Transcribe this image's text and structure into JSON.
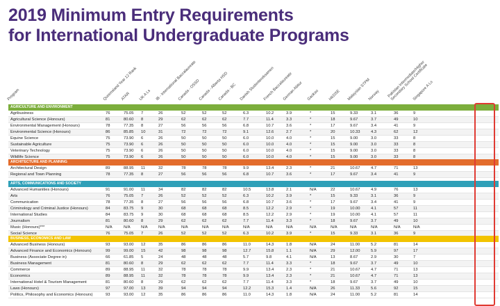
{
  "title_line1": "2019 Minimum Entry Requirements",
  "title_line2": "for International Undergraduate Programs",
  "columns": [
    "Program",
    "Queensland Year 12 Rank",
    "ATAR",
    "UK A Ls",
    "IB - International Baccalaureate",
    "Canada - OSSD",
    "Canada - Alberta HSD",
    "Canada - BC",
    "Danish Studentereksamen",
    "French Baccalaureate",
    "German Abitur",
    "Gaokao",
    "HKDSE",
    "Malaysian STPM",
    "Norway",
    "Pakistan Intermediate/Higher Secondary School Certificate",
    "Singapore A Ls"
  ],
  "colors": {
    "title": "#4a2d7a",
    "agriculture": "#7cae3c",
    "architecture": "#e36c2c",
    "arts": "#2fa0b8",
    "business": "#f2c300",
    "row_alt": "#f3f3f3",
    "highlight": "#e03a32"
  },
  "sections": [
    {
      "name": "AGRICULTURE AND ENVIRONMENT",
      "color": "#7cae3c",
      "rows": [
        [
          "Agribusiness",
          "76",
          "75.05",
          "7",
          "26",
          "52",
          "52",
          "52",
          "6.3",
          "10.2",
          "3.9",
          "*",
          "15",
          "9.33",
          "3.1",
          "36",
          "9"
        ],
        [
          "Agricultural Science (Honours)",
          "81",
          "80.60",
          "8",
          "29",
          "62",
          "62",
          "62",
          "7.7",
          "11.4",
          "3.3",
          "*",
          "18",
          "9.67",
          "3.7",
          "49",
          "10"
        ],
        [
          "Environmental Management (Honours)",
          "78",
          "77.35",
          "8",
          "27",
          "56",
          "56",
          "56",
          "6.8",
          "10.7",
          "3.6",
          "*",
          "17",
          "9.67",
          "3.4",
          "41",
          "9"
        ],
        [
          "Environmental Science (Honours)",
          "86",
          "85.85",
          "10",
          "31",
          "72",
          "72",
          "72",
          "9.1",
          "12.6",
          "2.7",
          "*",
          "20",
          "10.33",
          "4.3",
          "62",
          "12"
        ],
        [
          "Equine Science",
          "75",
          "73.90",
          "6",
          "26",
          "50",
          "50",
          "50",
          "6.0",
          "10.0",
          "4.0",
          "*",
          "15",
          "9.00",
          "3.0",
          "33",
          "8"
        ],
        [
          "Sustainable Agriculture",
          "75",
          "73.90",
          "6",
          "26",
          "50",
          "50",
          "50",
          "6.0",
          "10.0",
          "4.0",
          "*",
          "15",
          "9.00",
          "3.0",
          "33",
          "8"
        ],
        [
          "Veterinary Technology",
          "75",
          "73.90",
          "6",
          "26",
          "50",
          "50",
          "50",
          "6.0",
          "10.0",
          "4.0",
          "*",
          "15",
          "9.00",
          "3.0",
          "33",
          "8"
        ],
        [
          "Wildlife Science",
          "75",
          "73.90",
          "6",
          "26",
          "50",
          "50",
          "50",
          "6.0",
          "10.0",
          "4.0",
          "*",
          "15",
          "9.00",
          "3.0",
          "33",
          "8"
        ]
      ]
    },
    {
      "name": "ARCHITECTURE AND PLANNING",
      "color": "#e36c2c",
      "rows": [
        [
          "Architectural Design",
          "89",
          "88.95",
          "11",
          "32",
          "78",
          "78",
          "78",
          "9.9",
          "13.4",
          "2.3",
          "*",
          "21",
          "10.67",
          "4.7",
          "71",
          "13"
        ],
        [
          "Regional and Town Planning",
          "78",
          "77.35",
          "8",
          "27",
          "56",
          "56",
          "56",
          "6.8",
          "10.7",
          "3.6",
          "*",
          "17",
          "9.67",
          "3.4",
          "41",
          "9"
        ]
      ]
    },
    {
      "name": "ARTS, COMMUNICATIONS AND SOCIETY",
      "color": "#2fa0b8",
      "rows": [
        [
          "Advanced Humanities (Honours)",
          "91",
          "91.00",
          "11",
          "34",
          "82",
          "82",
          "82",
          "10.5",
          "13.8",
          "2.1",
          "N/A",
          "22",
          "10.67",
          "4.9",
          "76",
          "13"
        ],
        [
          "Arts",
          "76",
          "75.05",
          "7",
          "26",
          "52",
          "52",
          "52",
          "6.3",
          "10.2",
          "3.9",
          "*",
          "15",
          "9.33",
          "3.1",
          "36",
          "9"
        ],
        [
          "Communication",
          "78",
          "77.35",
          "8",
          "27",
          "56",
          "56",
          "56",
          "6.8",
          "10.7",
          "3.6",
          "*",
          "17",
          "9.67",
          "3.4",
          "41",
          "9"
        ],
        [
          "Criminology and Criminal Justice (Honours)",
          "84",
          "83.75",
          "9",
          "30",
          "68",
          "68",
          "68",
          "8.5",
          "12.2",
          "2.9",
          "*",
          "19",
          "10.00",
          "4.1",
          "57",
          "11"
        ],
        [
          "International Studies",
          "84",
          "83.75",
          "9",
          "30",
          "68",
          "68",
          "68",
          "8.5",
          "12.2",
          "2.9",
          "*",
          "19",
          "10.00",
          "4.1",
          "57",
          "11"
        ],
        [
          "Journalism",
          "81",
          "80.60",
          "8",
          "29",
          "62",
          "62",
          "62",
          "7.7",
          "11.4",
          "3.3",
          "*",
          "18",
          "9.67",
          "3.7",
          "49",
          "10"
        ],
        [
          "Music (Honours)***",
          "N/A",
          "N/A",
          "N/A",
          "N/A",
          "N/A",
          "N/A",
          "N/A",
          "N/A",
          "N/A",
          "N/A",
          "N/A",
          "N/A",
          "N/A",
          "N/A",
          "N/A",
          "N/A"
        ],
        [
          "Social Science",
          "76",
          "75.05",
          "7",
          "26",
          "52",
          "52",
          "52",
          "6.3",
          "10.2",
          "3.9",
          "*",
          "15",
          "9.33",
          "3.1",
          "36",
          "9"
        ]
      ]
    },
    {
      "name": "BUSINESS, ECONOMICS AND LAW",
      "color": "#f2c300",
      "rows": [
        [
          "Advanced Business (Honours)",
          "93",
          "93.00",
          "12",
          "35",
          "86",
          "86",
          "86",
          "11.0",
          "14.3",
          "1.8",
          "N/A",
          "24",
          "11.00",
          "5.2",
          "81",
          "14"
        ],
        [
          "Advanced Finance and Economics (Honours)",
          "99",
          "99.00",
          "15",
          "42",
          "98",
          "98",
          "98",
          "12.7",
          "15.8",
          "1.1",
          "N/A",
          "29",
          "12.00",
          "5.9",
          "97",
          "17"
        ],
        [
          "Business (Associate Degree in)",
          "66",
          "61.85",
          "5",
          "24",
          "48",
          "48",
          "48",
          "5.7",
          "9.8",
          "4.1",
          "N/A",
          "13",
          "8.67",
          "2.9",
          "30",
          "7"
        ],
        [
          "Business Management",
          "81",
          "80.60",
          "8",
          "29",
          "62",
          "62",
          "62",
          "7.7",
          "11.4",
          "3.3",
          "*",
          "18",
          "9.67",
          "3.7",
          "49",
          "10"
        ],
        [
          "Commerce",
          "89",
          "88.95",
          "11",
          "32",
          "78",
          "78",
          "78",
          "9.9",
          "13.4",
          "2.3",
          "*",
          "21",
          "10.67",
          "4.7",
          "71",
          "13"
        ],
        [
          "Economics",
          "89",
          "88.95",
          "11",
          "32",
          "78",
          "78",
          "78",
          "9.9",
          "13.4",
          "2.3",
          "*",
          "21",
          "10.67",
          "4.7",
          "71",
          "13"
        ],
        [
          "International Hotel & Tourism Management",
          "81",
          "80.60",
          "8",
          "29",
          "62",
          "62",
          "62",
          "7.7",
          "11.4",
          "3.3",
          "*",
          "18",
          "9.67",
          "3.7",
          "49",
          "10"
        ],
        [
          "Laws (Honours)",
          "97",
          "97.00",
          "13",
          "39",
          "94",
          "94",
          "94",
          "12.2",
          "15.3",
          "1.4",
          "N/A",
          "26",
          "11.33",
          "5.6",
          "92",
          "15"
        ],
        [
          "Politics, Philosophy and Economics (Honours)",
          "93",
          "93.00",
          "12",
          "35",
          "86",
          "86",
          "86",
          "11.0",
          "14.3",
          "1.8",
          "N/A",
          "24",
          "11.00",
          "5.2",
          "81",
          "14"
        ]
      ]
    }
  ]
}
